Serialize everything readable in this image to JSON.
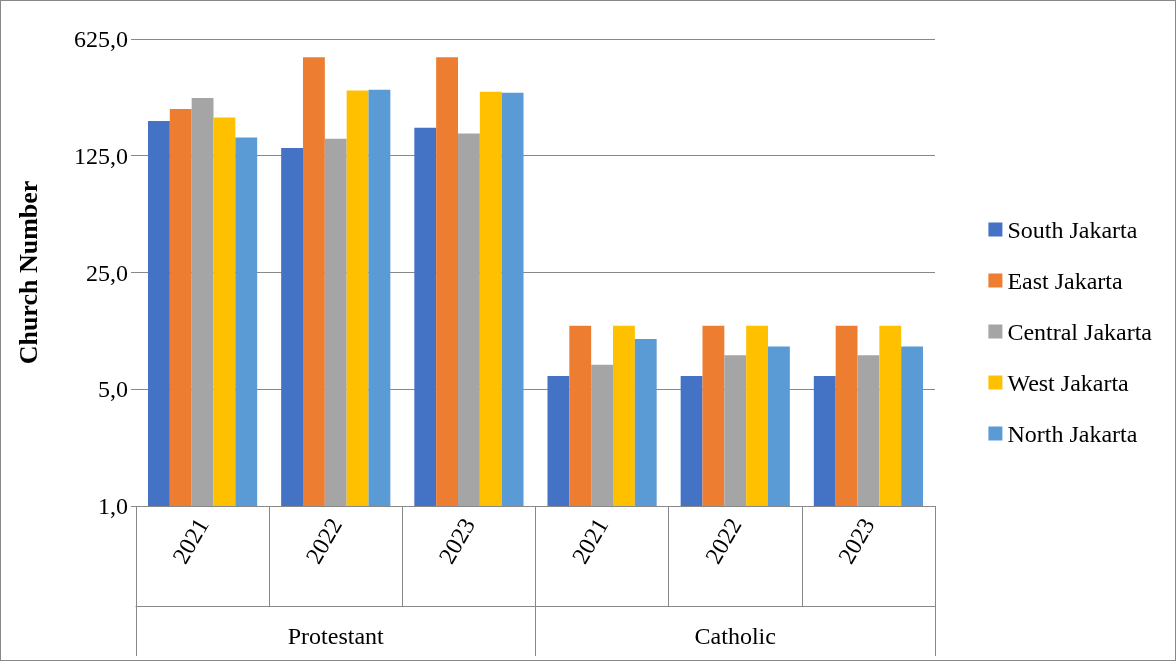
{
  "chart_data": {
    "type": "bar",
    "ylabel": "Church Number",
    "categories": [
      "2021",
      "2022",
      "2023",
      "2021",
      "2022",
      "2023"
    ],
    "annotations": [
      "Protestant",
      "Catholic"
    ],
    "series": [
      {
        "name": "South Jakarta",
        "color": "#4472c4",
        "values": [
          202,
          139,
          184,
          6,
          6,
          6
        ]
      },
      {
        "name": "East Jakarta",
        "color": "#ed7d31",
        "values": [
          238,
          486,
          486,
          12,
          12,
          12
        ]
      },
      {
        "name": "Central Jakarta",
        "color": "#a5a5a5",
        "values": [
          277,
          158,
          170,
          7,
          8,
          8
        ]
      },
      {
        "name": "West Jakarta",
        "color": "#ffc000",
        "values": [
          212,
          307,
          302,
          12,
          12,
          12
        ]
      },
      {
        "name": "North Jakarta",
        "color": "#5b9bd5",
        "values": [
          161,
          311,
          298,
          10,
          9,
          9
        ]
      }
    ],
    "log": "y",
    "ylim": [
      1,
      625
    ],
    "yticks": [
      {
        "value": 1,
        "label": "1,0"
      },
      {
        "value": 5,
        "label": "5,0"
      },
      {
        "value": 25,
        "label": "25,0"
      },
      {
        "value": 125,
        "label": "125,0"
      },
      {
        "value": 625,
        "label": "625,0"
      }
    ],
    "grid": "y",
    "legend": "right"
  }
}
